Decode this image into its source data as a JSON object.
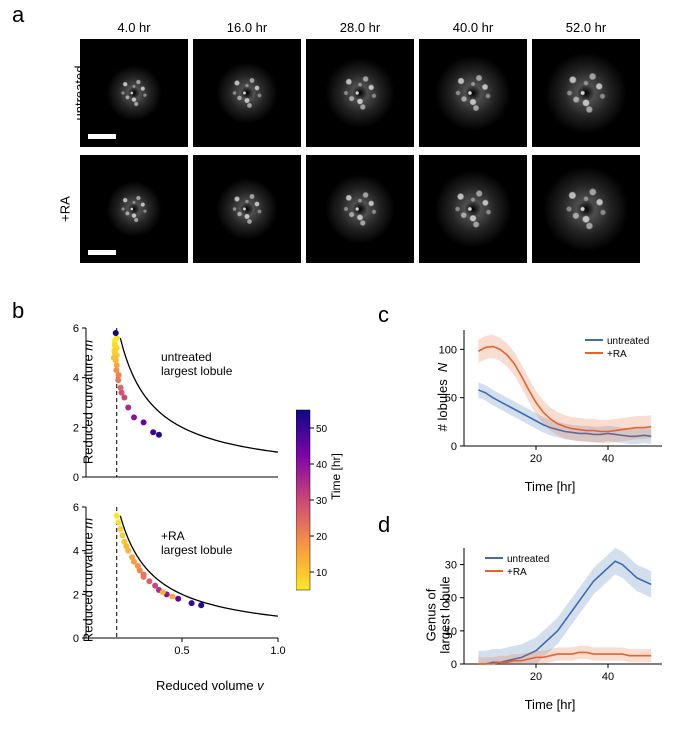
{
  "panel_labels": {
    "a": "a",
    "b": "b",
    "c": "c",
    "d": "d"
  },
  "panel_a": {
    "timepoints": [
      "4.0 hr",
      "16.0 hr",
      "28.0 hr",
      "40.0 hr",
      "52.0 hr"
    ],
    "row_labels": [
      "untreated",
      "+RA"
    ],
    "blob_sizes_row1": [
      56,
      62,
      70,
      76,
      82
    ],
    "blob_sizes_row2": [
      56,
      62,
      70,
      78,
      86
    ],
    "scalebar_on": [
      true,
      false,
      false,
      false,
      false
    ]
  },
  "panel_b": {
    "type": "scatter",
    "annot_untreated": "untreated\nlargest lobule",
    "annot_ra": "+RA\nlargest lobule",
    "xlabel": "Reduced volume v",
    "ylabel": "Reduced curvature m",
    "xlim": [
      0,
      1.0
    ],
    "ylim": [
      0,
      6
    ],
    "xticks": [
      0.5,
      1.0
    ],
    "yticks": [
      0,
      2,
      4,
      6
    ],
    "dashed_x": 0.16,
    "curve": {
      "type": "1/v",
      "x0": 0.1,
      "x1": 1.0
    },
    "cbar": {
      "label": "Time [hr]",
      "min": 5,
      "max": 55,
      "ticks": [
        10,
        20,
        30,
        40,
        50
      ],
      "gradient_stops": [
        {
          "t": 0.0,
          "c": "#fde725"
        },
        {
          "t": 0.25,
          "c": "#f89540"
        },
        {
          "t": 0.5,
          "c": "#cc4778"
        },
        {
          "t": 0.75,
          "c": "#7e03a8"
        },
        {
          "t": 1.0,
          "c": "#0d0887"
        }
      ]
    },
    "points_untreated": [
      {
        "v": 0.16,
        "m": 5.6,
        "t": 5
      },
      {
        "v": 0.16,
        "m": 5.2,
        "t": 8
      },
      {
        "v": 0.16,
        "m": 4.9,
        "t": 10
      },
      {
        "v": 0.16,
        "m": 4.5,
        "t": 15
      },
      {
        "v": 0.17,
        "m": 4.1,
        "t": 20
      },
      {
        "v": 0.18,
        "m": 3.6,
        "t": 25
      },
      {
        "v": 0.2,
        "m": 3.2,
        "t": 30
      },
      {
        "v": 0.22,
        "m": 2.8,
        "t": 35
      },
      {
        "v": 0.25,
        "m": 2.4,
        "t": 40
      },
      {
        "v": 0.3,
        "m": 2.2,
        "t": 45
      },
      {
        "v": 0.35,
        "m": 1.8,
        "t": 50
      },
      {
        "v": 0.38,
        "m": 1.7,
        "t": 52
      },
      {
        "v": 0.15,
        "m": 5.4,
        "t": 6
      },
      {
        "v": 0.15,
        "m": 5.0,
        "t": 9
      },
      {
        "v": 0.155,
        "m": 4.7,
        "t": 12
      },
      {
        "v": 0.158,
        "m": 4.3,
        "t": 18
      },
      {
        "v": 0.168,
        "m": 3.9,
        "t": 22
      },
      {
        "v": 0.185,
        "m": 3.4,
        "t": 28
      },
      {
        "v": 0.155,
        "m": 5.8,
        "t": 4
      },
      {
        "v": 0.152,
        "m": 5.5,
        "t": 5
      },
      {
        "v": 0.15,
        "m": 5.3,
        "t": 7
      },
      {
        "v": 0.148,
        "m": 5.1,
        "t": 8
      },
      {
        "v": 0.145,
        "m": 4.8,
        "t": 11
      }
    ],
    "points_ra": [
      {
        "v": 0.16,
        "m": 5.6,
        "t": 5
      },
      {
        "v": 0.18,
        "m": 5.0,
        "t": 8
      },
      {
        "v": 0.2,
        "m": 4.4,
        "t": 10
      },
      {
        "v": 0.22,
        "m": 4.0,
        "t": 13
      },
      {
        "v": 0.25,
        "m": 3.5,
        "t": 16
      },
      {
        "v": 0.28,
        "m": 3.1,
        "t": 20
      },
      {
        "v": 0.3,
        "m": 2.9,
        "t": 23
      },
      {
        "v": 0.33,
        "m": 2.6,
        "t": 26
      },
      {
        "v": 0.36,
        "m": 2.4,
        "t": 30
      },
      {
        "v": 0.38,
        "m": 2.2,
        "t": 35
      },
      {
        "v": 0.42,
        "m": 2.0,
        "t": 40
      },
      {
        "v": 0.48,
        "m": 1.8,
        "t": 45
      },
      {
        "v": 0.55,
        "m": 1.6,
        "t": 50
      },
      {
        "v": 0.6,
        "m": 1.5,
        "t": 52
      },
      {
        "v": 0.17,
        "m": 5.3,
        "t": 6
      },
      {
        "v": 0.19,
        "m": 4.7,
        "t": 9
      },
      {
        "v": 0.21,
        "m": 4.2,
        "t": 12
      },
      {
        "v": 0.24,
        "m": 3.7,
        "t": 15
      },
      {
        "v": 0.27,
        "m": 3.3,
        "t": 18
      },
      {
        "v": 0.3,
        "m": 2.8,
        "t": 22
      },
      {
        "v": 0.45,
        "m": 1.9,
        "t": 15
      },
      {
        "v": 0.4,
        "m": 2.1,
        "t": 13
      }
    ]
  },
  "panel_c": {
    "type": "line",
    "xlabel": "Time [hr]",
    "ylabel": "# lobules  N",
    "ylabel_italic": "N",
    "xlim": [
      0,
      55
    ],
    "ylim": [
      0,
      120
    ],
    "xticks": [
      20,
      40
    ],
    "yticks": [
      0,
      50,
      100
    ],
    "colors": {
      "untreated": "#3b6db3",
      "ra": "#e8632c"
    },
    "legend": [
      "untreated",
      "+RA"
    ],
    "series_untreated": {
      "x": [
        4,
        6,
        8,
        10,
        12,
        14,
        16,
        18,
        20,
        22,
        24,
        26,
        28,
        30,
        32,
        34,
        36,
        38,
        40,
        42,
        44,
        46,
        48,
        50,
        52
      ],
      "y": [
        58,
        55,
        50,
        46,
        42,
        38,
        34,
        30,
        26,
        22,
        19,
        17,
        15,
        14,
        13,
        13,
        12,
        12,
        13,
        12,
        11,
        10,
        10,
        11,
        10
      ],
      "band": 8
    },
    "series_ra": {
      "x": [
        4,
        6,
        8,
        10,
        12,
        14,
        16,
        18,
        20,
        22,
        24,
        26,
        28,
        30,
        32,
        34,
        36,
        38,
        40,
        42,
        44,
        46,
        48,
        50,
        52
      ],
      "y": [
        98,
        102,
        103,
        100,
        94,
        85,
        72,
        58,
        45,
        35,
        28,
        23,
        20,
        18,
        17,
        16,
        16,
        15,
        15,
        16,
        17,
        18,
        19,
        19,
        20
      ],
      "band": 12
    }
  },
  "panel_d": {
    "type": "line",
    "xlabel": "Time [hr]",
    "ylabel": "Genus of\nlargest lobule",
    "xlim": [
      0,
      55
    ],
    "ylim": [
      0,
      35
    ],
    "xticks": [
      20,
      40
    ],
    "yticks": [
      0,
      10,
      20,
      30
    ],
    "colors": {
      "untreated": "#3b6db3",
      "ra": "#e8632c"
    },
    "legend": [
      "untreated",
      "+RA"
    ],
    "series_untreated": {
      "x": [
        4,
        6,
        8,
        10,
        12,
        14,
        16,
        18,
        20,
        22,
        24,
        26,
        28,
        30,
        32,
        34,
        36,
        38,
        40,
        42,
        44,
        46,
        48,
        50,
        52
      ],
      "y": [
        0,
        0,
        0.5,
        0.5,
        1,
        1.5,
        2,
        3,
        4,
        6,
        8,
        10,
        13,
        16,
        19,
        22,
        25,
        27,
        29,
        31,
        30,
        28,
        26,
        25,
        24
      ],
      "band": 4
    },
    "series_ra": {
      "x": [
        4,
        6,
        8,
        10,
        12,
        14,
        16,
        18,
        20,
        22,
        24,
        26,
        28,
        30,
        32,
        34,
        36,
        38,
        40,
        42,
        44,
        46,
        48,
        50,
        52
      ],
      "y": [
        0,
        0,
        0,
        0.5,
        0.5,
        1,
        1,
        1.5,
        2,
        2,
        2.5,
        3,
        3,
        3,
        3.5,
        3.5,
        3,
        3,
        3,
        3,
        3,
        2.5,
        2.5,
        2.5,
        2.5
      ],
      "band": 2
    }
  },
  "styling": {
    "background": "#ffffff",
    "axis_color": "#000000",
    "font_size_axis": 11,
    "font_size_label": 13,
    "font_size_panel": 22,
    "marker_size": 4
  }
}
